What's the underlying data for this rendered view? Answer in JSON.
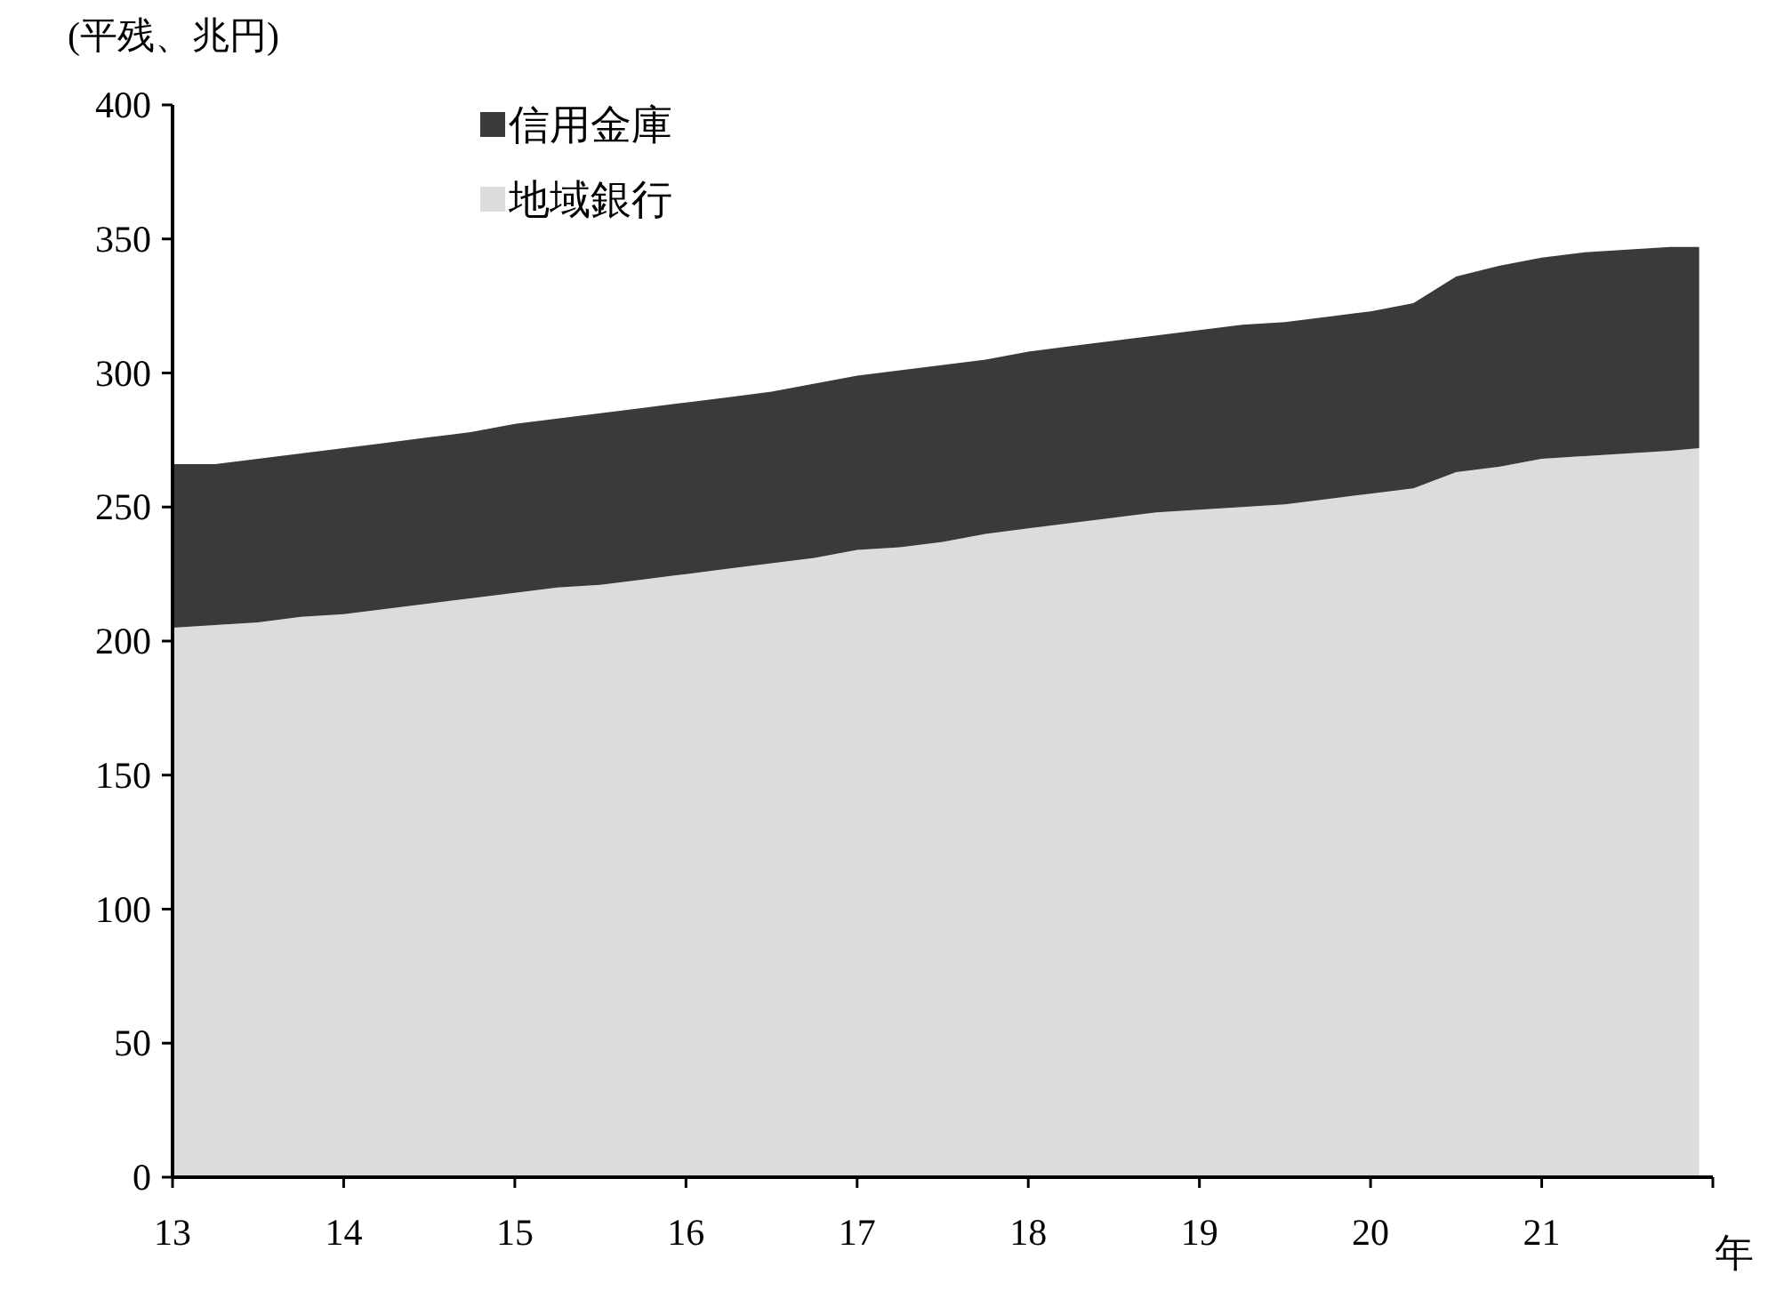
{
  "chart_data": {
    "type": "area",
    "stacked": true,
    "ylabel": "(平残、兆円)",
    "xlabel": "年",
    "x": [
      13,
      13.25,
      13.5,
      13.75,
      14,
      14.25,
      14.5,
      14.75,
      15,
      15.25,
      15.5,
      15.75,
      16,
      16.25,
      16.5,
      16.75,
      17,
      17.25,
      17.5,
      17.75,
      18,
      18.25,
      18.5,
      18.75,
      19,
      19.25,
      19.5,
      19.75,
      20,
      20.25,
      20.5,
      20.75,
      21,
      21.25,
      21.5,
      21.75,
      21.92
    ],
    "series": [
      {
        "name": "地域銀行",
        "color": "#dcdcdc",
        "values": [
          205,
          206,
          207,
          209,
          210,
          212,
          214,
          216,
          218,
          220,
          221,
          223,
          225,
          227,
          229,
          231,
          234,
          235,
          237,
          240,
          242,
          244,
          246,
          248,
          249,
          250,
          251,
          253,
          255,
          257,
          263,
          265,
          268,
          269,
          270,
          271,
          272
        ]
      },
      {
        "name": "信用金庫",
        "color": "#3a3a3a",
        "values": [
          61,
          60,
          61,
          61,
          62,
          62,
          62,
          62,
          63,
          63,
          64,
          64,
          64,
          64,
          64,
          65,
          65,
          66,
          66,
          65,
          66,
          66,
          66,
          66,
          67,
          68,
          68,
          68,
          68,
          69,
          73,
          75,
          75,
          76,
          76,
          76,
          75
        ]
      }
    ],
    "xlim": [
      13,
      22
    ],
    "xticks": [
      13,
      14,
      15,
      16,
      17,
      18,
      19,
      20,
      21,
      {
        "value": 22,
        "label": null
      }
    ],
    "ylim": [
      0,
      400
    ],
    "yticks": [
      0,
      50,
      100,
      150,
      200,
      250,
      300,
      350,
      400
    ],
    "legend": "top left",
    "grid": false
  }
}
